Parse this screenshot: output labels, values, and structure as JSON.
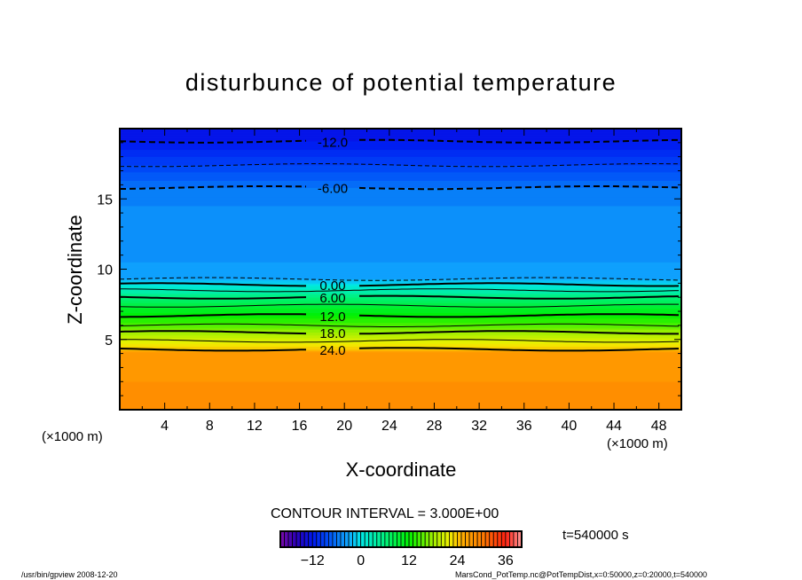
{
  "chart_data": {
    "type": "heatmap",
    "subtype": "filled-contour",
    "title": "disturbunce of potential temperature",
    "xlabel": "X-coordinate",
    "ylabel": "Z-coordinate",
    "x_unit_label": "(×1000 m)",
    "y_unit_label": "(×1000 m)",
    "xlim": [
      0,
      50
    ],
    "ylim": [
      0,
      20
    ],
    "x_ticks": [
      4,
      8,
      12,
      16,
      20,
      24,
      28,
      32,
      36,
      40,
      44,
      48
    ],
    "y_ticks": [
      5,
      10,
      15
    ],
    "grid": false,
    "contour_interval_text": "CONTOUR INTERVAL = 3.000E+00",
    "time_text": "t=540000 s",
    "profile": {
      "z": [
        0,
        2,
        4.1,
        4.3,
        4.9,
        5.5,
        6.0,
        6.7,
        7.4,
        8.0,
        8.5,
        8.9,
        9.3,
        10.5,
        12.5,
        14.5,
        15.8,
        17.4,
        19.1,
        20
      ],
      "value": [
        28.5,
        28,
        27,
        24,
        21,
        18,
        15,
        12,
        9,
        6,
        3,
        0,
        -3,
        -4,
        -4.5,
        -5,
        -6,
        -9,
        -12,
        -13
      ]
    },
    "contours": [
      {
        "level": -12,
        "z": 19.1,
        "label": "-12.0",
        "style": "dashed-bold"
      },
      {
        "level": -9,
        "z": 17.4,
        "label": "",
        "style": "dashed"
      },
      {
        "level": -6,
        "z": 15.8,
        "label": "-6.00",
        "style": "dashed-bold"
      },
      {
        "level": -3,
        "z": 9.3,
        "label": "",
        "style": "dashed"
      },
      {
        "level": 0,
        "z": 8.9,
        "label": "0.00",
        "style": "bold"
      },
      {
        "level": 3,
        "z": 8.5,
        "label": "",
        "style": "thin"
      },
      {
        "level": 6,
        "z": 8.0,
        "label": "6.00",
        "style": "bold"
      },
      {
        "level": 9,
        "z": 7.4,
        "label": "",
        "style": "thin"
      },
      {
        "level": 12,
        "z": 6.7,
        "label": "12.0",
        "style": "bold"
      },
      {
        "level": 15,
        "z": 6.0,
        "label": "",
        "style": "thin"
      },
      {
        "level": 18,
        "z": 5.5,
        "label": "18.0",
        "style": "bold"
      },
      {
        "level": 21,
        "z": 4.9,
        "label": "",
        "style": "thin"
      },
      {
        "level": 24,
        "z": 4.3,
        "label": "24.0",
        "style": "bold"
      }
    ],
    "colorbar": {
      "range": [
        -20,
        40
      ],
      "ticks": [
        -12,
        0,
        12,
        24,
        36
      ]
    },
    "colormap": [
      {
        "v": -20,
        "c": "#7a0aa8"
      },
      {
        "v": -16,
        "c": "#2a00b8"
      },
      {
        "v": -12,
        "c": "#0018f0"
      },
      {
        "v": -8,
        "c": "#0050f8"
      },
      {
        "v": -5,
        "c": "#0a88f8"
      },
      {
        "v": -3,
        "c": "#10a8ff"
      },
      {
        "v": 0,
        "c": "#00e8e8"
      },
      {
        "v": 5,
        "c": "#00f090"
      },
      {
        "v": 12,
        "c": "#00f000"
      },
      {
        "v": 18,
        "c": "#a0f000"
      },
      {
        "v": 22,
        "c": "#f0f000"
      },
      {
        "v": 25,
        "c": "#ffb000"
      },
      {
        "v": 30,
        "c": "#ff8000"
      },
      {
        "v": 36,
        "c": "#ff2010"
      },
      {
        "v": 40,
        "c": "#ff9898"
      }
    ]
  },
  "footer": {
    "left": "/usr/bin/gpview  2008-12-20",
    "right": "MarsCond_PotTemp.nc@PotTempDist,x=0:50000,z=0:20000,t=540000"
  }
}
